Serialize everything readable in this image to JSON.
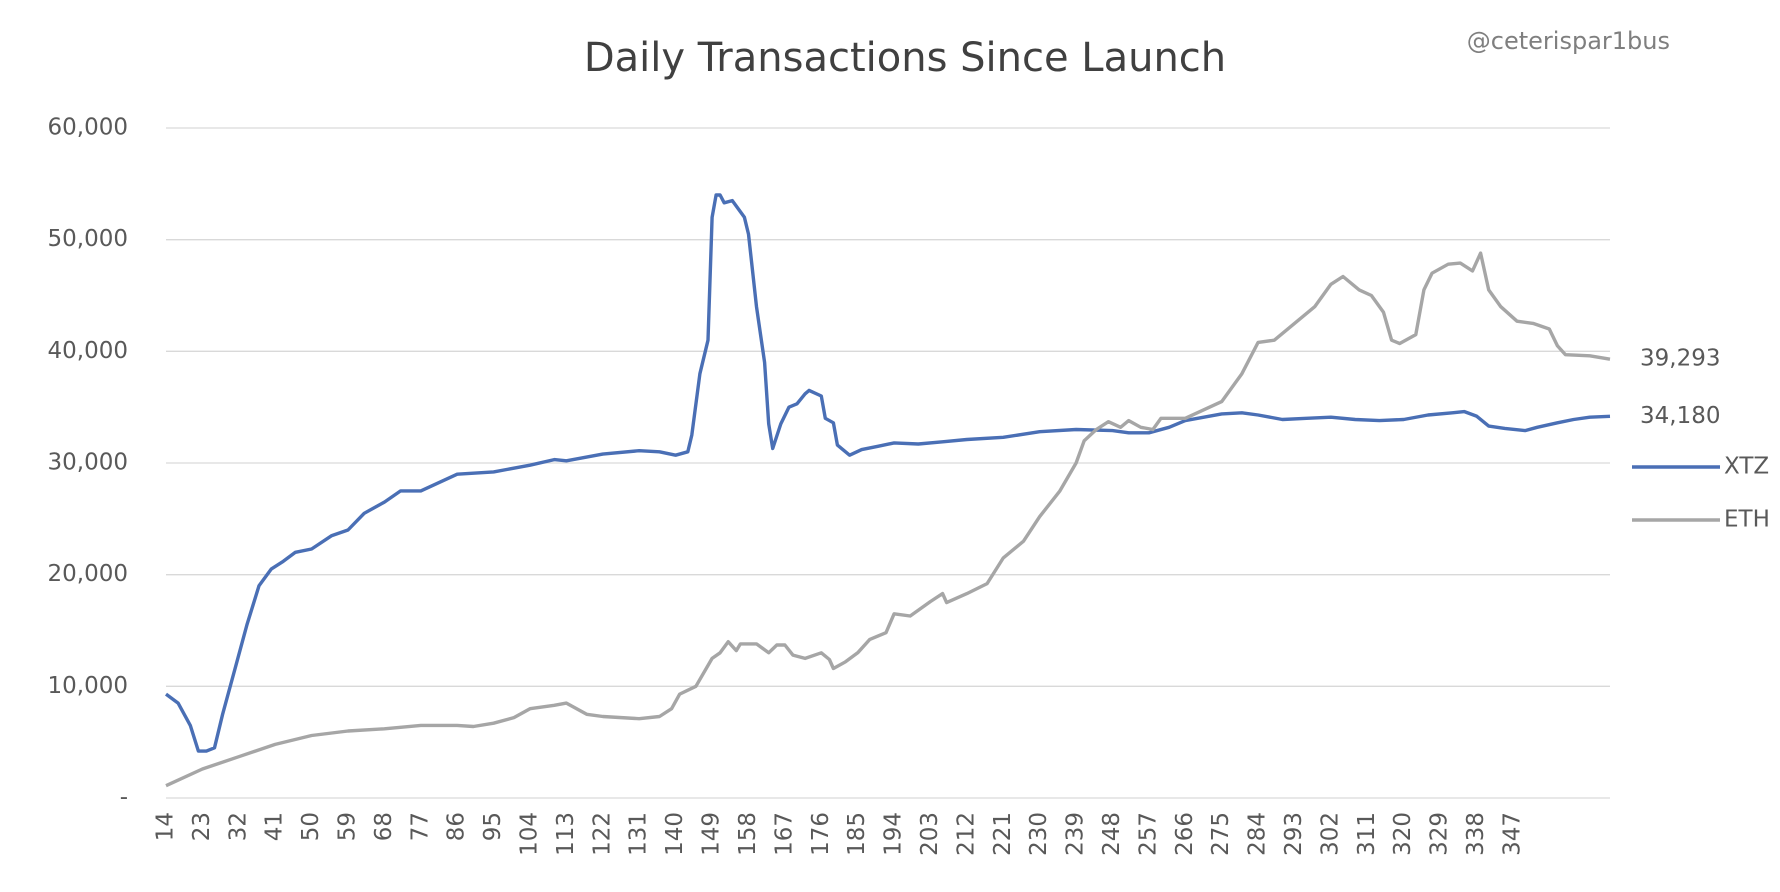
{
  "chart_data": {
    "type": "line",
    "title": "Daily Transactions Since Launch",
    "annotation": "@ceterispar1bus",
    "xlim": [
      14,
      371
    ],
    "xticks": [
      14,
      23,
      32,
      41,
      50,
      59,
      68,
      77,
      86,
      95,
      104,
      113,
      122,
      131,
      140,
      149,
      158,
      167,
      176,
      185,
      194,
      203,
      212,
      221,
      230,
      239,
      248,
      257,
      266,
      275,
      284,
      293,
      302,
      311,
      320,
      329,
      338,
      347
    ],
    "ylim": [
      0,
      60000
    ],
    "yticks": [
      {
        "value": 0,
        "label": "-"
      },
      {
        "value": 10000,
        "label": "10,000"
      },
      {
        "value": 20000,
        "label": "20,000"
      },
      {
        "value": 30000,
        "label": "30,000"
      },
      {
        "value": 40000,
        "label": "40,000"
      },
      {
        "value": 50000,
        "label": "50,000"
      },
      {
        "value": 60000,
        "label": "60,000"
      }
    ],
    "grid": true,
    "legend": "right",
    "series": [
      {
        "name": "XTZ",
        "color": "#4a6fb5",
        "x": [
          14,
          17,
          20,
          22,
          24,
          26,
          28,
          31,
          34,
          37,
          40,
          43,
          46,
          50,
          55,
          59,
          63,
          68,
          72,
          77,
          86,
          95,
          104,
          110,
          113,
          122,
          131,
          136,
          140,
          143,
          144,
          146,
          148,
          149,
          150,
          151,
          152,
          154,
          156,
          157,
          158,
          160,
          162,
          163,
          164,
          166,
          168,
          170,
          172,
          173,
          176,
          177,
          179,
          180,
          183,
          186,
          190,
          194,
          200,
          206,
          212,
          221,
          230,
          239,
          248,
          252,
          257,
          262,
          266,
          275,
          280,
          284,
          290,
          296,
          302,
          308,
          314,
          320,
          326,
          332,
          335,
          338,
          341,
          345,
          350,
          353,
          358,
          362,
          366,
          371
        ],
        "values": [
          9300,
          8500,
          6500,
          4200,
          4200,
          4500,
          7500,
          11500,
          15500,
          19000,
          20500,
          21200,
          22000,
          22300,
          23500,
          24000,
          25500,
          26500,
          27500,
          27500,
          29000,
          29200,
          29800,
          30300,
          30200,
          30800,
          31100,
          31000,
          30700,
          31000,
          32500,
          38000,
          41000,
          52000,
          54000,
          54000,
          53300,
          53500,
          52500,
          52000,
          50500,
          44000,
          39000,
          33500,
          31300,
          33500,
          35000,
          35300,
          36200,
          36500,
          36000,
          34000,
          33600,
          31600,
          30700,
          31200,
          31500,
          31800,
          31700,
          31900,
          32100,
          32300,
          32800,
          33000,
          32900,
          32700,
          32700,
          33200,
          33800,
          34400,
          34500,
          34300,
          33900,
          34000,
          34100,
          33900,
          33800,
          33900,
          34300,
          34500,
          34600,
          34200,
          33300,
          33100,
          32900,
          33200,
          33600,
          33900,
          34100,
          34180
        ],
        "value_labels": [
          null,
          null,
          null,
          null,
          null,
          null,
          null,
          null,
          null,
          null,
          null,
          null,
          null,
          null,
          null,
          null,
          null,
          null,
          null,
          null,
          null,
          null,
          null,
          null,
          null,
          null,
          null,
          null,
          null,
          null,
          null,
          null,
          null,
          null,
          null,
          null,
          null,
          null,
          null,
          null,
          null,
          null,
          null,
          null,
          null,
          null,
          null,
          null,
          null,
          null,
          null,
          null,
          null,
          null,
          null,
          null,
          null,
          null,
          null,
          null,
          null,
          null,
          null,
          null,
          null,
          null,
          null,
          null,
          null,
          null,
          null,
          null,
          null,
          null,
          null,
          null,
          null,
          null,
          null,
          null,
          null,
          null,
          null,
          null,
          null,
          null,
          null,
          null,
          null,
          "34,180"
        ]
      },
      {
        "name": "ETH",
        "color": "#a6a6a6",
        "x": [
          14,
          23,
          32,
          41,
          50,
          59,
          68,
          77,
          86,
          90,
          95,
          100,
          104,
          110,
          113,
          118,
          122,
          131,
          136,
          139,
          141,
          145,
          149,
          151,
          153,
          155,
          156,
          160,
          163,
          165,
          167,
          169,
          172,
          176,
          178,
          179,
          182,
          185,
          188,
          192,
          194,
          198,
          203,
          206,
          207,
          212,
          217,
          221,
          226,
          230,
          235,
          239,
          241,
          244,
          247,
          250,
          252,
          255,
          258,
          260,
          266,
          275,
          280,
          284,
          288,
          293,
          298,
          302,
          305,
          309,
          312,
          315,
          317,
          319,
          323,
          325,
          327,
          331,
          334,
          337,
          339,
          341,
          344,
          348,
          352,
          356,
          358,
          360,
          366,
          371
        ],
        "values": [
          1100,
          2600,
          3700,
          4800,
          5600,
          6000,
          6200,
          6500,
          6500,
          6400,
          6700,
          7200,
          8000,
          8300,
          8500,
          7500,
          7300,
          7100,
          7300,
          8000,
          9300,
          10000,
          12500,
          13000,
          14000,
          13200,
          13800,
          13800,
          13000,
          13700,
          13700,
          12800,
          12500,
          13000,
          12400,
          11600,
          12200,
          13000,
          14200,
          14800,
          16500,
          16300,
          17600,
          18300,
          17500,
          18300,
          19200,
          21500,
          23000,
          25200,
          27500,
          30000,
          32000,
          33000,
          33700,
          33200,
          33800,
          33200,
          33000,
          34000,
          34000,
          35500,
          38000,
          40800,
          41000,
          42500,
          44000,
          46000,
          46700,
          45500,
          45000,
          43500,
          41000,
          40700,
          41500,
          45500,
          47000,
          47800,
          47900,
          47200,
          48800,
          45500,
          44000,
          42700,
          42500,
          42000,
          40500,
          39700,
          39600,
          39293
        ],
        "value_labels": [
          null,
          null,
          null,
          null,
          null,
          null,
          null,
          null,
          null,
          null,
          null,
          null,
          null,
          null,
          null,
          null,
          null,
          null,
          null,
          null,
          null,
          null,
          null,
          null,
          null,
          null,
          null,
          null,
          null,
          null,
          null,
          null,
          null,
          null,
          null,
          null,
          null,
          null,
          null,
          null,
          null,
          null,
          null,
          null,
          null,
          null,
          null,
          null,
          null,
          null,
          null,
          null,
          null,
          null,
          null,
          null,
          null,
          null,
          null,
          null,
          null,
          null,
          null,
          null,
          null,
          null,
          null,
          null,
          null,
          null,
          null,
          null,
          null,
          null,
          null,
          null,
          null,
          null,
          null,
          null,
          null,
          null,
          null,
          null,
          null,
          null,
          null,
          null,
          null,
          "39,293"
        ]
      }
    ]
  }
}
